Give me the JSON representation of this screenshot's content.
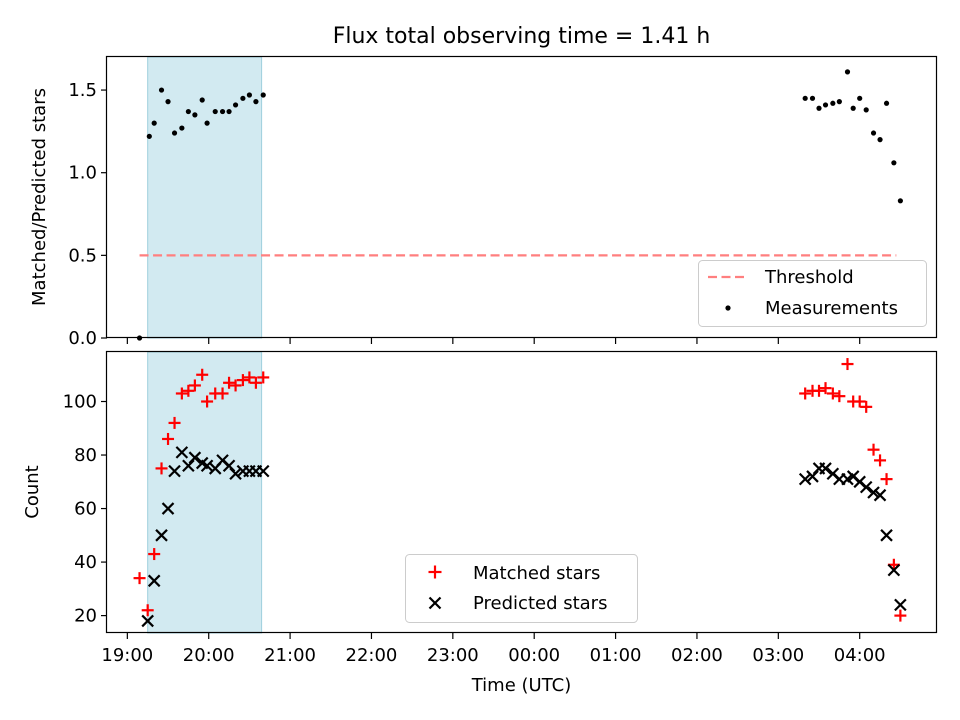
{
  "chart_data": [
    {
      "type": "scatter",
      "title": "Flux total observing time = 1.41 h",
      "xlabel": "",
      "ylabel": "Matched/Predicted stars",
      "xlim": [
        18.75,
        28.95
      ],
      "ylim": [
        0,
        1.7
      ],
      "yticks": [
        0.0,
        0.5,
        1.0,
        1.5
      ],
      "ytick_labels": [
        "0.0",
        "0.5",
        "1.0",
        "1.5"
      ],
      "highlight_span": {
        "x": [
          19.25,
          20.65
        ],
        "color": "#add8e6"
      },
      "threshold": {
        "label": "Threshold",
        "value": 0.5,
        "x": [
          19.15,
          28.45
        ],
        "color": "#ff7f7f"
      },
      "legend_position": "lower right",
      "series": [
        {
          "name": "Measurements",
          "color": "#000000",
          "marker": "dot",
          "x": [
            19.15,
            19.27,
            19.33,
            19.42,
            19.5,
            19.58,
            19.67,
            19.75,
            19.83,
            19.92,
            19.98,
            20.08,
            20.17,
            20.25,
            20.33,
            20.42,
            20.5,
            20.58,
            20.67,
            27.33,
            27.42,
            27.5,
            27.58,
            27.67,
            27.75,
            27.85,
            27.92,
            28.0,
            28.08,
            28.17,
            28.25,
            28.33,
            28.42,
            28.5
          ],
          "y": [
            0.0,
            1.22,
            1.3,
            1.5,
            1.43,
            1.24,
            1.27,
            1.37,
            1.35,
            1.44,
            1.3,
            1.37,
            1.37,
            1.37,
            1.41,
            1.45,
            1.47,
            1.43,
            1.47,
            1.45,
            1.45,
            1.39,
            1.41,
            1.42,
            1.43,
            1.61,
            1.39,
            1.45,
            1.38,
            1.24,
            1.2,
            1.42,
            1.06,
            0.83
          ]
        }
      ]
    },
    {
      "type": "scatter",
      "title": "",
      "xlabel": "Time (UTC)",
      "ylabel": "Count",
      "xlim": [
        18.75,
        28.95
      ],
      "ylim": [
        13.5,
        118.5
      ],
      "yticks": [
        20,
        40,
        60,
        80,
        100
      ],
      "ytick_labels": [
        "20",
        "40",
        "60",
        "80",
        "100"
      ],
      "xticks": [
        19,
        20,
        21,
        22,
        23,
        24,
        25,
        26,
        27,
        28
      ],
      "xtick_labels": [
        "19:00",
        "20:00",
        "21:00",
        "22:00",
        "23:00",
        "00:00",
        "01:00",
        "02:00",
        "03:00",
        "04:00"
      ],
      "highlight_span": {
        "x": [
          19.25,
          20.65
        ],
        "color": "#add8e6"
      },
      "legend_position": "lower center",
      "series": [
        {
          "name": "Matched stars",
          "color": "#ff0000",
          "marker": "plus",
          "x": [
            19.15,
            19.25,
            19.33,
            19.42,
            19.5,
            19.58,
            19.67,
            19.75,
            19.83,
            19.92,
            19.98,
            20.08,
            20.17,
            20.25,
            20.33,
            20.42,
            20.5,
            20.58,
            20.67,
            27.33,
            27.42,
            27.5,
            27.58,
            27.67,
            27.75,
            27.85,
            27.92,
            28.0,
            28.08,
            28.17,
            28.25,
            28.33,
            28.42,
            28.5
          ],
          "y": [
            34,
            22,
            43,
            75,
            86,
            92,
            103,
            104,
            106,
            110,
            100,
            103,
            103,
            107,
            106,
            108,
            109,
            107,
            109,
            103,
            104,
            104,
            105,
            103,
            102,
            114,
            100,
            100,
            98,
            82,
            78,
            71,
            39,
            20
          ]
        },
        {
          "name": "Predicted stars",
          "color": "#000000",
          "marker": "x",
          "x": [
            19.25,
            19.33,
            19.42,
            19.5,
            19.58,
            19.67,
            19.75,
            19.83,
            19.92,
            19.98,
            20.08,
            20.17,
            20.25,
            20.33,
            20.42,
            20.5,
            20.58,
            20.67,
            27.33,
            27.42,
            27.5,
            27.58,
            27.67,
            27.75,
            27.85,
            27.92,
            28.0,
            28.08,
            28.17,
            28.25,
            28.33,
            28.42,
            28.5
          ],
          "y": [
            18,
            33,
            50,
            60,
            74,
            81,
            76,
            79,
            77,
            76,
            75,
            78,
            76,
            73,
            74,
            74,
            74,
            74,
            71,
            72,
            75,
            75,
            73,
            71,
            71,
            72,
            70,
            68,
            66,
            65,
            50,
            37,
            24
          ]
        }
      ]
    }
  ]
}
